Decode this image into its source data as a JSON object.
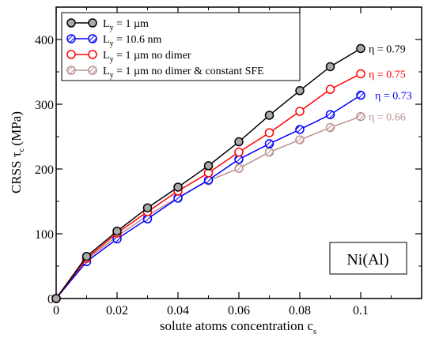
{
  "chart_data": {
    "type": "line",
    "xlabel": "solute atoms concentration c",
    "xlabel_sub": "s",
    "ylabel": "CRSS τ",
    "ylabel_sub": "c",
    "ylabel_unit": "(MPa)",
    "xlim": [
      0,
      0.12
    ],
    "ylim": [
      0,
      450
    ],
    "x_ticks": [
      {
        "value": 0,
        "label": "0"
      },
      {
        "value": 0.02,
        "label": "0.02"
      },
      {
        "value": 0.04,
        "label": "0.04"
      },
      {
        "value": 0.06,
        "label": "0.06"
      },
      {
        "value": 0.08,
        "label": "0.08"
      },
      {
        "value": 0.1,
        "label": "0.1"
      }
    ],
    "y_ticks": [
      {
        "value": 0,
        "label": "0"
      },
      {
        "value": 100,
        "label": "100"
      },
      {
        "value": 200,
        "label": "200"
      },
      {
        "value": 300,
        "label": "300"
      },
      {
        "value": 400,
        "label": "400"
      }
    ],
    "x": [
      0,
      0.01,
      0.02,
      0.03,
      0.04,
      0.05,
      0.06,
      0.07,
      0.08,
      0.09,
      0.1
    ],
    "series": [
      {
        "name": "L",
        "name_sub": "y",
        "name_rest": " = 1 µm",
        "line_color": "#000000",
        "marker_edge": "#000000",
        "marker_fill": "#a9a9a9",
        "marker_style": "filled",
        "values": [
          0,
          65,
          104,
          140,
          172,
          205,
          242,
          283,
          321,
          358,
          386
        ],
        "annotation": "η = 0.79",
        "annotation_color": "#000000"
      },
      {
        "name": "L",
        "name_sub": "y",
        "name_rest": " = 10.6 nm",
        "line_color": "#0000ff",
        "marker_edge": "#0000ff",
        "marker_fill": "#ffffff",
        "marker_style": "hatched",
        "values": [
          0,
          57,
          92,
          123,
          155,
          183,
          215,
          239,
          261,
          284,
          314
        ],
        "annotation": "η = 0.73",
        "annotation_color": "#0000ff"
      },
      {
        "name": "L",
        "name_sub": "y",
        "name_rest": " = 1 µm no dimer",
        "line_color": "#ff0000",
        "marker_edge": "#ff0000",
        "marker_fill": "#ffffff",
        "marker_style": "open",
        "values": [
          0,
          62,
          101,
          134,
          166,
          194,
          226,
          256,
          289,
          323,
          347
        ],
        "annotation": "η = 0.75",
        "annotation_color": "#ff0000"
      },
      {
        "name": "L",
        "name_sub": "y",
        "name_rest": " = 1  µm no dimer & constant SFE",
        "line_color": "#bc8f8f",
        "marker_edge": "#bc8f8f",
        "marker_fill": "#ffffff",
        "marker_style": "hatched",
        "values": [
          0,
          60,
          96,
          128,
          156,
          182,
          201,
          226,
          245,
          264,
          281
        ],
        "annotation": "η = 0.66",
        "annotation_color": "#bc8f8f"
      }
    ],
    "annotation_box": "Ni(Al)",
    "grid": false,
    "legend_position": "top-left"
  }
}
